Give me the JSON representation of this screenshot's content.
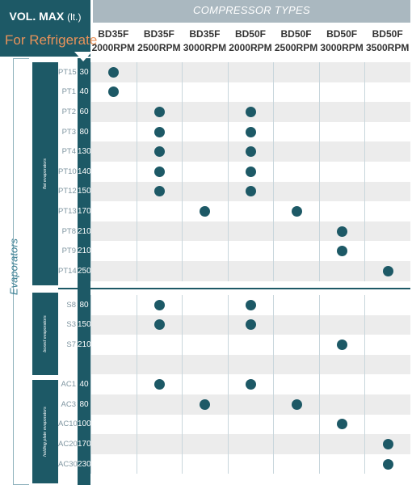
{
  "header": {
    "vol_max": "VOL. MAX",
    "vol_unit": "(lt.)",
    "for_refrigerate": "For Refrigerate",
    "compressor_types": "COMPRESSOR TYPES"
  },
  "columns": [
    {
      "model": "BD35F",
      "rpm": "2000RPM"
    },
    {
      "model": "BD35F",
      "rpm": "2500RPM"
    },
    {
      "model": "BD35F",
      "rpm": "3000RPM"
    },
    {
      "model": "BD50F",
      "rpm": "2000RPM"
    },
    {
      "model": "BD50F",
      "rpm": "2500RPM"
    },
    {
      "model": "BD50F",
      "rpm": "3000RPM"
    },
    {
      "model": "BD50F",
      "rpm": "3500RPM"
    }
  ],
  "evaporators_label": "Evaporators",
  "groups": [
    {
      "label": "flat evaporators"
    },
    {
      "label": "boxed evaporators"
    },
    {
      "label": "holding plate evaporators"
    }
  ],
  "rows": [
    {
      "code": "PT15",
      "volume": "30",
      "marks": [
        0
      ]
    },
    {
      "code": "PT1",
      "volume": "40",
      "marks": [
        0
      ]
    },
    {
      "code": "PT2",
      "volume": "60",
      "marks": [
        1,
        3
      ]
    },
    {
      "code": "PT3",
      "volume": "80",
      "marks": [
        1,
        3
      ]
    },
    {
      "code": "PT4",
      "volume": "130",
      "marks": [
        1,
        3
      ]
    },
    {
      "code": "PT10",
      "volume": "140",
      "marks": [
        1,
        3
      ]
    },
    {
      "code": "PT12",
      "volume": "150",
      "marks": [
        1,
        3
      ]
    },
    {
      "code": "PT13",
      "volume": "170",
      "marks": [
        2,
        4
      ]
    },
    {
      "code": "PT8",
      "volume": "210",
      "marks": [
        5
      ]
    },
    {
      "code": "PT9",
      "volume": "210",
      "marks": [
        5
      ]
    },
    {
      "code": "PT14",
      "volume": "250",
      "marks": [
        6
      ]
    },
    {
      "code": "S8",
      "volume": "80",
      "marks": [
        1,
        3
      ]
    },
    {
      "code": "S3",
      "volume": "150",
      "marks": [
        1,
        3
      ]
    },
    {
      "code": "S7",
      "volume": "210",
      "marks": [
        5
      ]
    },
    {
      "code": "",
      "volume": "",
      "marks": []
    },
    {
      "code": "AC1",
      "volume": "40",
      "marks": [
        1,
        3
      ]
    },
    {
      "code": "AC3",
      "volume": "80",
      "marks": [
        2,
        4
      ]
    },
    {
      "code": "AC10",
      "volume": "100",
      "marks": [
        5
      ]
    },
    {
      "code": "AC20",
      "volume": "170",
      "marks": [
        6
      ]
    },
    {
      "code": "AC30",
      "volume": "230",
      "marks": [
        6
      ]
    }
  ]
}
